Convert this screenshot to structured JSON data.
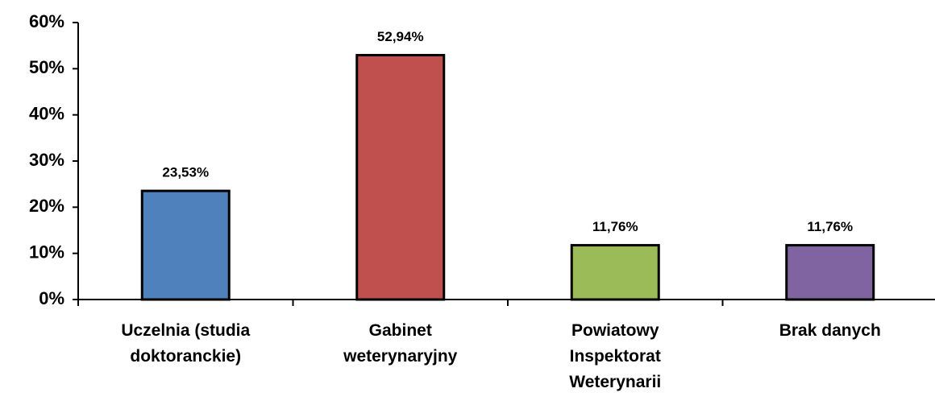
{
  "chart_data": {
    "type": "bar",
    "categories": [
      "Uczelnia (studia doktoranckie)",
      "Gabinet weterynaryjny",
      "Powiatowy Inspektorat Weterynarii",
      "Brak danych"
    ],
    "values": [
      23.53,
      52.94,
      11.76,
      11.76
    ],
    "value_labels": [
      "23,53%",
      "52,94%",
      "11,76%",
      "11,76%"
    ],
    "colors": [
      "#4f81bd",
      "#c0504d",
      "#9bbb59",
      "#8064a2"
    ],
    "ylim": [
      0,
      60
    ],
    "yticks": [
      {
        "value": 0,
        "label": "0%"
      },
      {
        "value": 10,
        "label": "10%"
      },
      {
        "value": 20,
        "label": "20%"
      },
      {
        "value": 30,
        "label": "30%"
      },
      {
        "value": 40,
        "label": "40%"
      },
      {
        "value": 50,
        "label": "50%"
      },
      {
        "value": 60,
        "label": "60%"
      }
    ],
    "grid": false
  }
}
